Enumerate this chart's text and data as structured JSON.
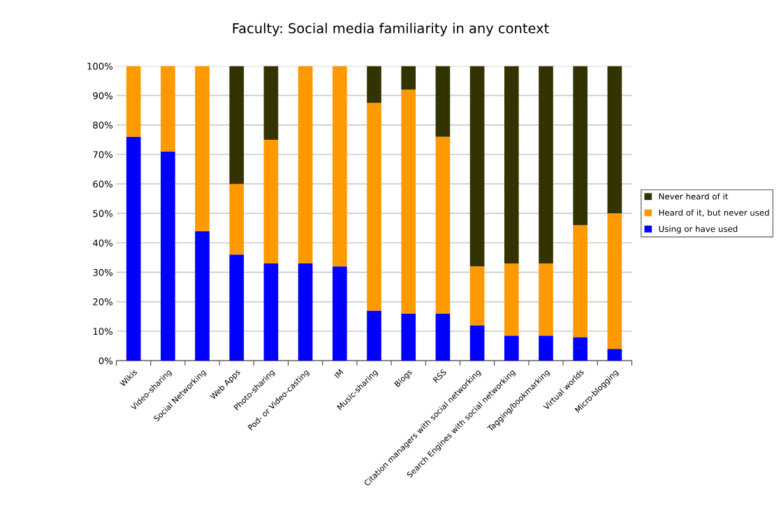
{
  "chart_data": {
    "type": "bar",
    "title": "Faculty: Social media familiarity in any context",
    "categories": [
      "Wikis",
      "Video-sharing",
      "Social Networking",
      "Web Apps",
      "Photo-sharing",
      "Pod- or Video-casting",
      "IM",
      "Music-sharing",
      "Blogs",
      "RSS",
      "Citation managers with social networking",
      "Search Engines with social networking",
      "Tagging/bookmarking",
      "Virtual worlds",
      "Micro-blogging"
    ],
    "stacked": true,
    "series": [
      {
        "name": "Using or have used",
        "color": "#0000ff",
        "values": [
          76,
          71,
          44,
          36,
          33,
          33,
          32,
          17,
          16,
          16,
          12,
          8.5,
          8.5,
          8,
          4
        ]
      },
      {
        "name": "Heard of it, but never used",
        "color": "#ff9900",
        "values": [
          24,
          29,
          56,
          24,
          42,
          67,
          68,
          70.5,
          76,
          60,
          20,
          24.5,
          24.5,
          38,
          46
        ]
      },
      {
        "name": "Never heard of it",
        "color": "#333300",
        "values": [
          0,
          0,
          0,
          40,
          25,
          0,
          0,
          12.5,
          8,
          24,
          68,
          67,
          67,
          54,
          50
        ]
      }
    ],
    "ylim": [
      0,
      100
    ],
    "yticks": [
      {
        "value": 0,
        "label": "0%"
      },
      {
        "value": 10,
        "label": "10%"
      },
      {
        "value": 20,
        "label": "20%"
      },
      {
        "value": 30,
        "label": "30%"
      },
      {
        "value": 40,
        "label": "40%"
      },
      {
        "value": 50,
        "label": "50%"
      },
      {
        "value": 60,
        "label": "60%"
      },
      {
        "value": 70,
        "label": "70%"
      },
      {
        "value": 80,
        "label": "80%"
      },
      {
        "value": 90,
        "label": "90%"
      },
      {
        "value": 100,
        "label": "100%"
      }
    ],
    "grid": "y",
    "legend": "right"
  }
}
